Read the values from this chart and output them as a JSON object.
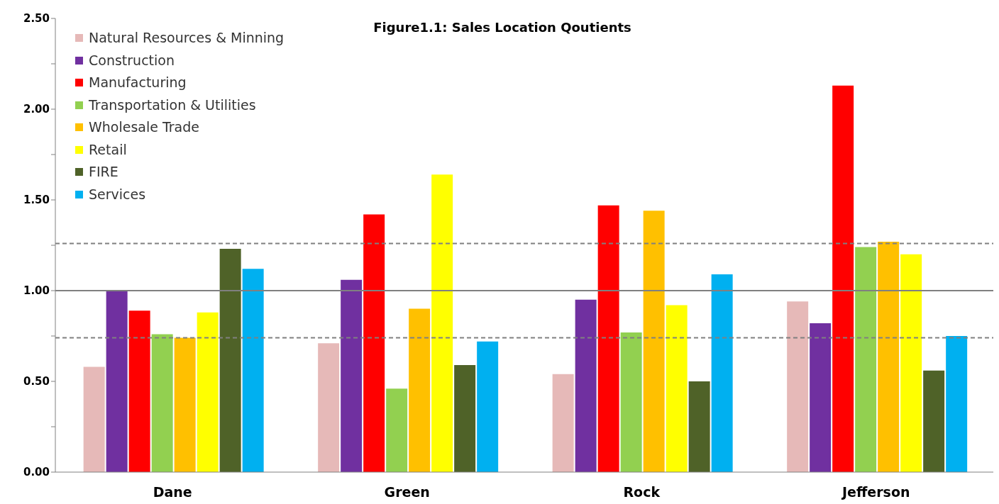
{
  "chart_data": {
    "type": "bar",
    "title": "Figure1.1:  Sales Location Qoutients",
    "categories": [
      "Dane",
      "Green",
      "Rock",
      "Jefferson"
    ],
    "series": [
      {
        "name": "Natural Resources & Minning",
        "color": "#e6b9b8",
        "values": [
          0.58,
          0.71,
          0.54,
          0.94
        ]
      },
      {
        "name": "Construction",
        "color": "#7030a0",
        "values": [
          1.0,
          1.06,
          0.95,
          0.82
        ]
      },
      {
        "name": "Manufacturing",
        "color": "#ff0000",
        "values": [
          0.89,
          1.42,
          1.47,
          2.13
        ]
      },
      {
        "name": "Transportation & Utilities",
        "color": "#92d050",
        "values": [
          0.76,
          0.46,
          0.77,
          1.24
        ]
      },
      {
        "name": "Wholesale Trade",
        "color": "#ffc000",
        "values": [
          0.74,
          0.9,
          1.44,
          1.27
        ]
      },
      {
        "name": "Retail",
        "color": "#ffff00",
        "values": [
          0.88,
          1.64,
          0.92,
          1.2
        ]
      },
      {
        "name": "FIRE",
        "color": "#4f6228",
        "values": [
          1.23,
          0.59,
          0.5,
          0.56
        ]
      },
      {
        "name": "Services",
        "color": "#00b0f0",
        "values": [
          1.12,
          0.72,
          1.09,
          0.75
        ]
      }
    ],
    "ylim": [
      0,
      2.5
    ],
    "yticks": [
      {
        "value": 0,
        "label": "0.00"
      },
      {
        "value": 0.25,
        "label": null
      },
      {
        "value": 0.5,
        "label": "0.50"
      },
      {
        "value": 0.75,
        "label": null
      },
      {
        "value": 1,
        "label": "1.00"
      },
      {
        "value": 1.25,
        "label": null
      },
      {
        "value": 1.5,
        "label": "1.50"
      },
      {
        "value": 1.75,
        "label": null
      },
      {
        "value": 2,
        "label": "2.00"
      },
      {
        "value": 2.25,
        "label": null
      },
      {
        "value": 2.5,
        "label": "2.50"
      }
    ],
    "ref_lines": [
      {
        "axis": "y",
        "value": 1.0,
        "color": "#808080",
        "line_style": "solid"
      },
      {
        "axis": "y",
        "value": 1.26,
        "color": "#808080",
        "line_style": "dashed"
      },
      {
        "axis": "y",
        "value": 0.74,
        "color": "#808080",
        "line_style": "dashed"
      }
    ],
    "grid": false,
    "legend": "top left"
  }
}
